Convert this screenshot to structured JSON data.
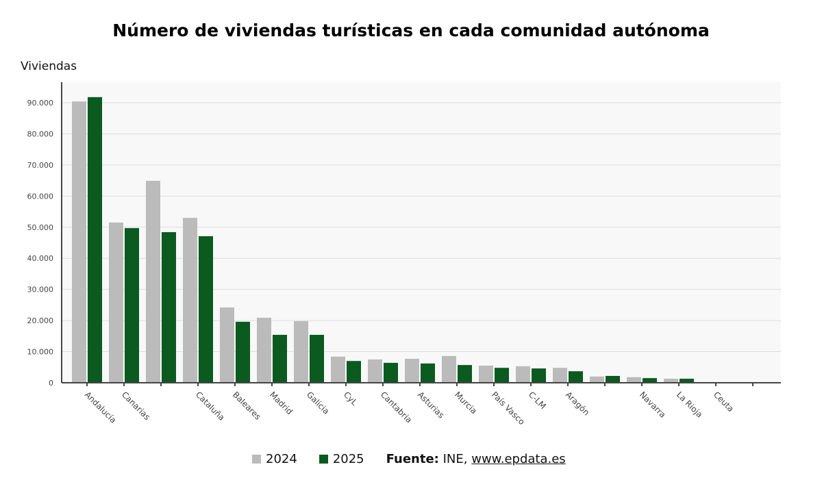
{
  "chart_data": {
    "type": "bar",
    "title": "Número de viviendas turísticas en cada comunidad autónoma",
    "ylabel": "Viviendas",
    "xlabel": "",
    "ylim": [
      0,
      96000
    ],
    "yticks": [
      0,
      10000,
      20000,
      30000,
      40000,
      50000,
      60000,
      70000,
      80000,
      90000
    ],
    "ytick_labels": [
      "0",
      "10.000",
      "20.000",
      "30.000",
      "40.000",
      "50.000",
      "60.000",
      "70.000",
      "80.000",
      "90.000"
    ],
    "grid": true,
    "legend_placement": "bottom",
    "categories": [
      "Andalucía",
      "Canarias",
      "",
      "Cataluña",
      "Baleares",
      "Madrid",
      "Galicia",
      "CyL",
      "Cantabria",
      "Asturias",
      "Murcia",
      "País Vasco",
      "C-LM",
      "Aragón",
      "",
      "Navarra",
      "La Rioja",
      "Ceuta",
      ""
    ],
    "series": [
      {
        "name": "2024",
        "color": "#bbbbbb",
        "values": [
          90400,
          51500,
          64900,
          53000,
          24200,
          20900,
          19800,
          8400,
          7500,
          7700,
          8600,
          5500,
          5300,
          4800,
          2000,
          1800,
          1300,
          100,
          100
        ]
      },
      {
        "name": "2025",
        "color": "#0b5a20",
        "values": [
          91800,
          49700,
          48400,
          47100,
          19600,
          15400,
          15400,
          7000,
          6400,
          6200,
          5700,
          4800,
          4600,
          3700,
          2200,
          1500,
          1300,
          100,
          100
        ]
      }
    ]
  },
  "source": {
    "label": "Fuente:",
    "text": "INE,",
    "link": "www.epdata.es"
  }
}
